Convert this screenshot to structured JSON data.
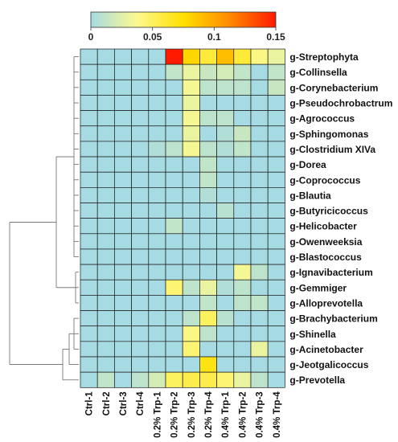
{
  "chart_data": {
    "type": "heatmap",
    "title": "",
    "xlabel": "",
    "ylabel": "",
    "colorbar": {
      "range": [
        0,
        0.15
      ],
      "ticks": [
        0,
        0.05,
        0.1,
        0.15
      ],
      "tick_labels": [
        "0",
        "0.05",
        "0.1",
        "0.15"
      ],
      "colors": [
        "#a6dbe3",
        "#fbf98f",
        "#ffe000",
        "#ff8a00",
        "#ff1a00"
      ]
    },
    "columns": [
      "Ctrl-1",
      "Ctrl-2",
      "Ctrl-3",
      "Ctrl-4",
      "0.2% Trp-1",
      "0.2% Trp-2",
      "0.2% Trp-3",
      "0.2% Trp-4",
      "0.4% Trp-1",
      "0.4% Trp-2",
      "0.4% Trp-3",
      "0.4% Trp-4"
    ],
    "rows": [
      "g-Streptophyta",
      "g-Collinsella",
      "g-Corynebacterium",
      "g-Pseudochrobactrum",
      "g-Agrococcus",
      "g-Sphingomonas",
      "g-Clostridium XIVa",
      "g-Dorea",
      "g-Coprococcus",
      "g-Blautia",
      "g-Butyricicoccus",
      "g-Helicobacter",
      "g-Owenweeksia",
      "g-Blastococcus",
      "g-Ignavibacterium",
      "g-Gemmiger",
      "g-Alloprevotella",
      "g-Brachybacterium",
      "g-Shinella",
      "g-Acinetobacter",
      "g-Jeotgalicoccus",
      "g-Prevotella"
    ],
    "values": [
      [
        0,
        0,
        0,
        0,
        0,
        0.15,
        0.08,
        0.06,
        0.09,
        0.06,
        0.04,
        0.03
      ],
      [
        0,
        0,
        0,
        0,
        0,
        0.012,
        0.03,
        0.015,
        0.02,
        0.012,
        0,
        0.012
      ],
      [
        0,
        0,
        0,
        0,
        0,
        0,
        0.035,
        0.01,
        0.01,
        0.01,
        0,
        0.015
      ],
      [
        0,
        0,
        0,
        0,
        0,
        0,
        0.03,
        0,
        0,
        0,
        0,
        0
      ],
      [
        0,
        0,
        0,
        0,
        0,
        0,
        0.035,
        0.01,
        0.01,
        0,
        0,
        0
      ],
      [
        0,
        0,
        0,
        0,
        0,
        0,
        0.03,
        0,
        0.005,
        0.015,
        0,
        0
      ],
      [
        0,
        0,
        0,
        0,
        0.005,
        0.01,
        0.035,
        0.01,
        0.005,
        0.012,
        0,
        0
      ],
      [
        0,
        0,
        0,
        0,
        0,
        0,
        0,
        0.012,
        0,
        0,
        0,
        0
      ],
      [
        0,
        0,
        0,
        0,
        0,
        0,
        0,
        0.012,
        0,
        0,
        0,
        0
      ],
      [
        0,
        0,
        0,
        0,
        0,
        0,
        0,
        0.005,
        0,
        0,
        0,
        0
      ],
      [
        0,
        0,
        0,
        0,
        0,
        0,
        0,
        0,
        0.008,
        0,
        0,
        0
      ],
      [
        0,
        0,
        0,
        0,
        0,
        0.012,
        0,
        0,
        0,
        0,
        0,
        0
      ],
      [
        0,
        0,
        0,
        0,
        0,
        0,
        0,
        0,
        0,
        0,
        0,
        0
      ],
      [
        0,
        0,
        0,
        0,
        0,
        0,
        0,
        0,
        0,
        0,
        0,
        0
      ],
      [
        0,
        0,
        0,
        0,
        0,
        0,
        0,
        0,
        0,
        0.035,
        0.01,
        0
      ],
      [
        0,
        0,
        0,
        0,
        0,
        0.045,
        0.01,
        0.03,
        0.005,
        0.01,
        0,
        0
      ],
      [
        0,
        0,
        0,
        0,
        0,
        0,
        0,
        0.012,
        0,
        0.01,
        0.012,
        0
      ],
      [
        0,
        0,
        0,
        0,
        0,
        0,
        0.01,
        0.05,
        0.008,
        0,
        0,
        0
      ],
      [
        0,
        0,
        0,
        0,
        0,
        0,
        0.04,
        0.01,
        0,
        0,
        0,
        0
      ],
      [
        0,
        0,
        0,
        0,
        0,
        0,
        0.045,
        0,
        0,
        0,
        0.03,
        0
      ],
      [
        0,
        0,
        0,
        0,
        0,
        0,
        0,
        0.07,
        0,
        0,
        0,
        0
      ],
      [
        0,
        0.012,
        0,
        0.01,
        0.02,
        0.05,
        0.055,
        0.055,
        0.045,
        0.03,
        0.01,
        0
      ]
    ],
    "row_dendrogram": true,
    "grid": true
  }
}
